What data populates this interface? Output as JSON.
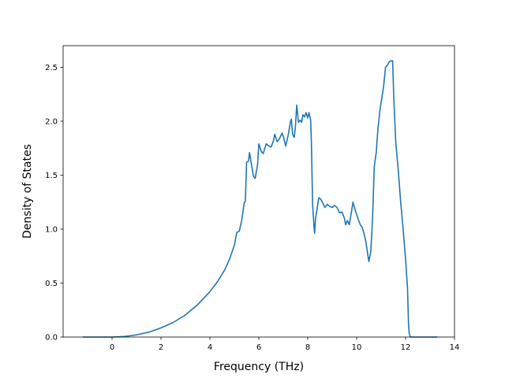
{
  "chart_data": {
    "type": "line",
    "title": "",
    "xlabel": "Frequency (THz)",
    "ylabel": "Density of States",
    "xlim": [
      -2.0,
      14.0
    ],
    "ylim": [
      0.0,
      2.7
    ],
    "x_ticks": [
      0,
      2,
      4,
      6,
      8,
      10,
      12,
      14
    ],
    "y_ticks": [
      0.0,
      0.5,
      1.0,
      1.5,
      2.0,
      2.5
    ],
    "x_tick_labels": [
      "0",
      "2",
      "4",
      "6",
      "8",
      "10",
      "12",
      "14"
    ],
    "y_tick_labels": [
      "0.0",
      "0.5",
      "1.0",
      "1.5",
      "2.0",
      "2.5"
    ],
    "grid": false,
    "series": [
      {
        "color": "#1f77b4",
        "points": [
          [
            -1.2,
            0.0
          ],
          [
            0.0,
            0.0
          ],
          [
            0.5,
            0.005
          ],
          [
            1.0,
            0.02
          ],
          [
            1.5,
            0.045
          ],
          [
            2.0,
            0.085
          ],
          [
            2.5,
            0.135
          ],
          [
            3.0,
            0.205
          ],
          [
            3.5,
            0.3
          ],
          [
            4.0,
            0.42
          ],
          [
            4.3,
            0.51
          ],
          [
            4.6,
            0.62
          ],
          [
            4.8,
            0.72
          ],
          [
            5.0,
            0.85
          ],
          [
            5.1,
            0.97
          ],
          [
            5.2,
            0.98
          ],
          [
            5.3,
            1.08
          ],
          [
            5.4,
            1.24
          ],
          [
            5.45,
            1.26
          ],
          [
            5.5,
            1.62
          ],
          [
            5.58,
            1.63
          ],
          [
            5.62,
            1.71
          ],
          [
            5.7,
            1.6
          ],
          [
            5.78,
            1.49
          ],
          [
            5.85,
            1.47
          ],
          [
            5.95,
            1.6
          ],
          [
            6.0,
            1.79
          ],
          [
            6.1,
            1.72
          ],
          [
            6.18,
            1.7
          ],
          [
            6.3,
            1.79
          ],
          [
            6.42,
            1.77
          ],
          [
            6.5,
            1.76
          ],
          [
            6.6,
            1.82
          ],
          [
            6.65,
            1.88
          ],
          [
            6.75,
            1.81
          ],
          [
            6.85,
            1.84
          ],
          [
            6.95,
            1.89
          ],
          [
            7.0,
            1.86
          ],
          [
            7.1,
            1.77
          ],
          [
            7.2,
            1.87
          ],
          [
            7.3,
            2.0
          ],
          [
            7.33,
            2.02
          ],
          [
            7.38,
            1.88
          ],
          [
            7.45,
            1.85
          ],
          [
            7.5,
            1.96
          ],
          [
            7.55,
            2.15
          ],
          [
            7.62,
            1.99
          ],
          [
            7.7,
            2.01
          ],
          [
            7.75,
            1.99
          ],
          [
            7.8,
            2.06
          ],
          [
            7.87,
            2.04
          ],
          [
            7.93,
            2.08
          ],
          [
            8.0,
            2.03
          ],
          [
            8.05,
            2.08
          ],
          [
            8.12,
            2.01
          ],
          [
            8.15,
            1.8
          ],
          [
            8.2,
            1.22
          ],
          [
            8.25,
            1.05
          ],
          [
            8.28,
            0.96
          ],
          [
            8.32,
            1.1
          ],
          [
            8.38,
            1.18
          ],
          [
            8.45,
            1.29
          ],
          [
            8.52,
            1.28
          ],
          [
            8.6,
            1.25
          ],
          [
            8.7,
            1.2
          ],
          [
            8.8,
            1.23
          ],
          [
            8.9,
            1.21
          ],
          [
            9.0,
            1.2
          ],
          [
            9.1,
            1.22
          ],
          [
            9.2,
            1.2
          ],
          [
            9.3,
            1.15
          ],
          [
            9.4,
            1.16
          ],
          [
            9.5,
            1.1
          ],
          [
            9.55,
            1.04
          ],
          [
            9.62,
            1.08
          ],
          [
            9.7,
            1.04
          ],
          [
            9.78,
            1.15
          ],
          [
            9.85,
            1.25
          ],
          [
            9.95,
            1.17
          ],
          [
            10.05,
            1.1
          ],
          [
            10.15,
            1.04
          ],
          [
            10.22,
            1.02
          ],
          [
            10.3,
            0.96
          ],
          [
            10.38,
            0.88
          ],
          [
            10.45,
            0.77
          ],
          [
            10.5,
            0.7
          ],
          [
            10.58,
            0.8
          ],
          [
            10.65,
            1.1
          ],
          [
            10.72,
            1.58
          ],
          [
            10.8,
            1.71
          ],
          [
            10.87,
            1.93
          ],
          [
            10.95,
            2.1
          ],
          [
            11.02,
            2.2
          ],
          [
            11.1,
            2.32
          ],
          [
            11.18,
            2.5
          ],
          [
            11.26,
            2.52
          ],
          [
            11.33,
            2.55
          ],
          [
            11.4,
            2.56
          ],
          [
            11.47,
            2.56
          ],
          [
            11.52,
            2.2
          ],
          [
            11.6,
            1.8
          ],
          [
            11.7,
            1.55
          ],
          [
            11.8,
            1.25
          ],
          [
            11.9,
            1.0
          ],
          [
            12.0,
            0.72
          ],
          [
            12.08,
            0.45
          ],
          [
            12.12,
            0.12
          ],
          [
            12.15,
            0.03
          ],
          [
            12.2,
            0.0
          ],
          [
            13.3,
            0.0
          ]
        ]
      }
    ]
  }
}
